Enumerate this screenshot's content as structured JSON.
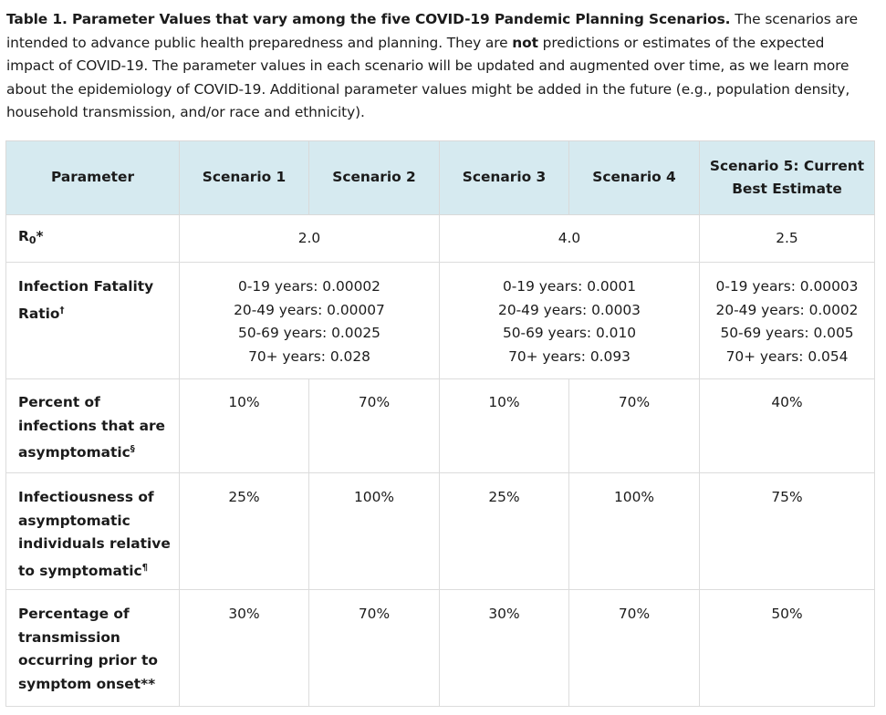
{
  "caption": {
    "title": "Table 1. Parameter Values that vary among the five COVID-19 Pandemic Planning Scenarios.",
    "text_before_bold": " The scenarios are intended to advance public health preparedness and planning.  They are ",
    "bold_word": "not",
    "text_after_bold": " predictions or estimates of the expected impact of COVID-19.  The parameter values in each scenario will be updated and augmented over time, as we learn more about the epidemiology of COVID-19.  Additional parameter values might be added in the future (e.g., population density, household transmission, and/or race and ethnicity)."
  },
  "header": {
    "parameter": "Parameter",
    "scenario1": "Scenario 1",
    "scenario2": "Scenario 2",
    "scenario3": "Scenario 3",
    "scenario4": "Scenario 4",
    "scenario5": "Scenario 5: Current Best Estimate"
  },
  "rows": {
    "r0": {
      "label_main": "R",
      "label_sub": "0",
      "label_mark": "*",
      "s12": "2.0",
      "s34": "4.0",
      "s5": "2.5"
    },
    "ifr": {
      "label": "Infection Fatality Ratio",
      "label_mark": "†",
      "s12": [
        "0-19 years: 0.00002",
        "20-49 years: 0.00007",
        "50-69 years: 0.0025",
        "70+ years: 0.028"
      ],
      "s34": [
        "0-19 years: 0.0001",
        "20-49 years: 0.0003",
        "50-69 years: 0.010",
        "70+ years: 0.093"
      ],
      "s5": [
        "0-19 years: 0.00003",
        "20-49 years: 0.0002",
        "50-69 years: 0.005",
        "70+ years: 0.054"
      ]
    },
    "asymptomatic": {
      "label": "Percent of infections that are asymptomatic",
      "label_mark": "§",
      "s1": "10%",
      "s2": "70%",
      "s3": "10%",
      "s4": "70%",
      "s5": "40%"
    },
    "infectiousness": {
      "label": "Infectiousness of asymptomatic individuals relative to symptomatic",
      "label_mark": "¶",
      "s1": "25%",
      "s2": "100%",
      "s3": "25%",
      "s4": "100%",
      "s5": "75%"
    },
    "presymptomatic": {
      "label": "Percentage of transmission occurring prior to symptom onset",
      "label_mark": "**",
      "s1": "30%",
      "s2": "70%",
      "s3": "30%",
      "s4": "70%",
      "s5": "50%"
    }
  }
}
